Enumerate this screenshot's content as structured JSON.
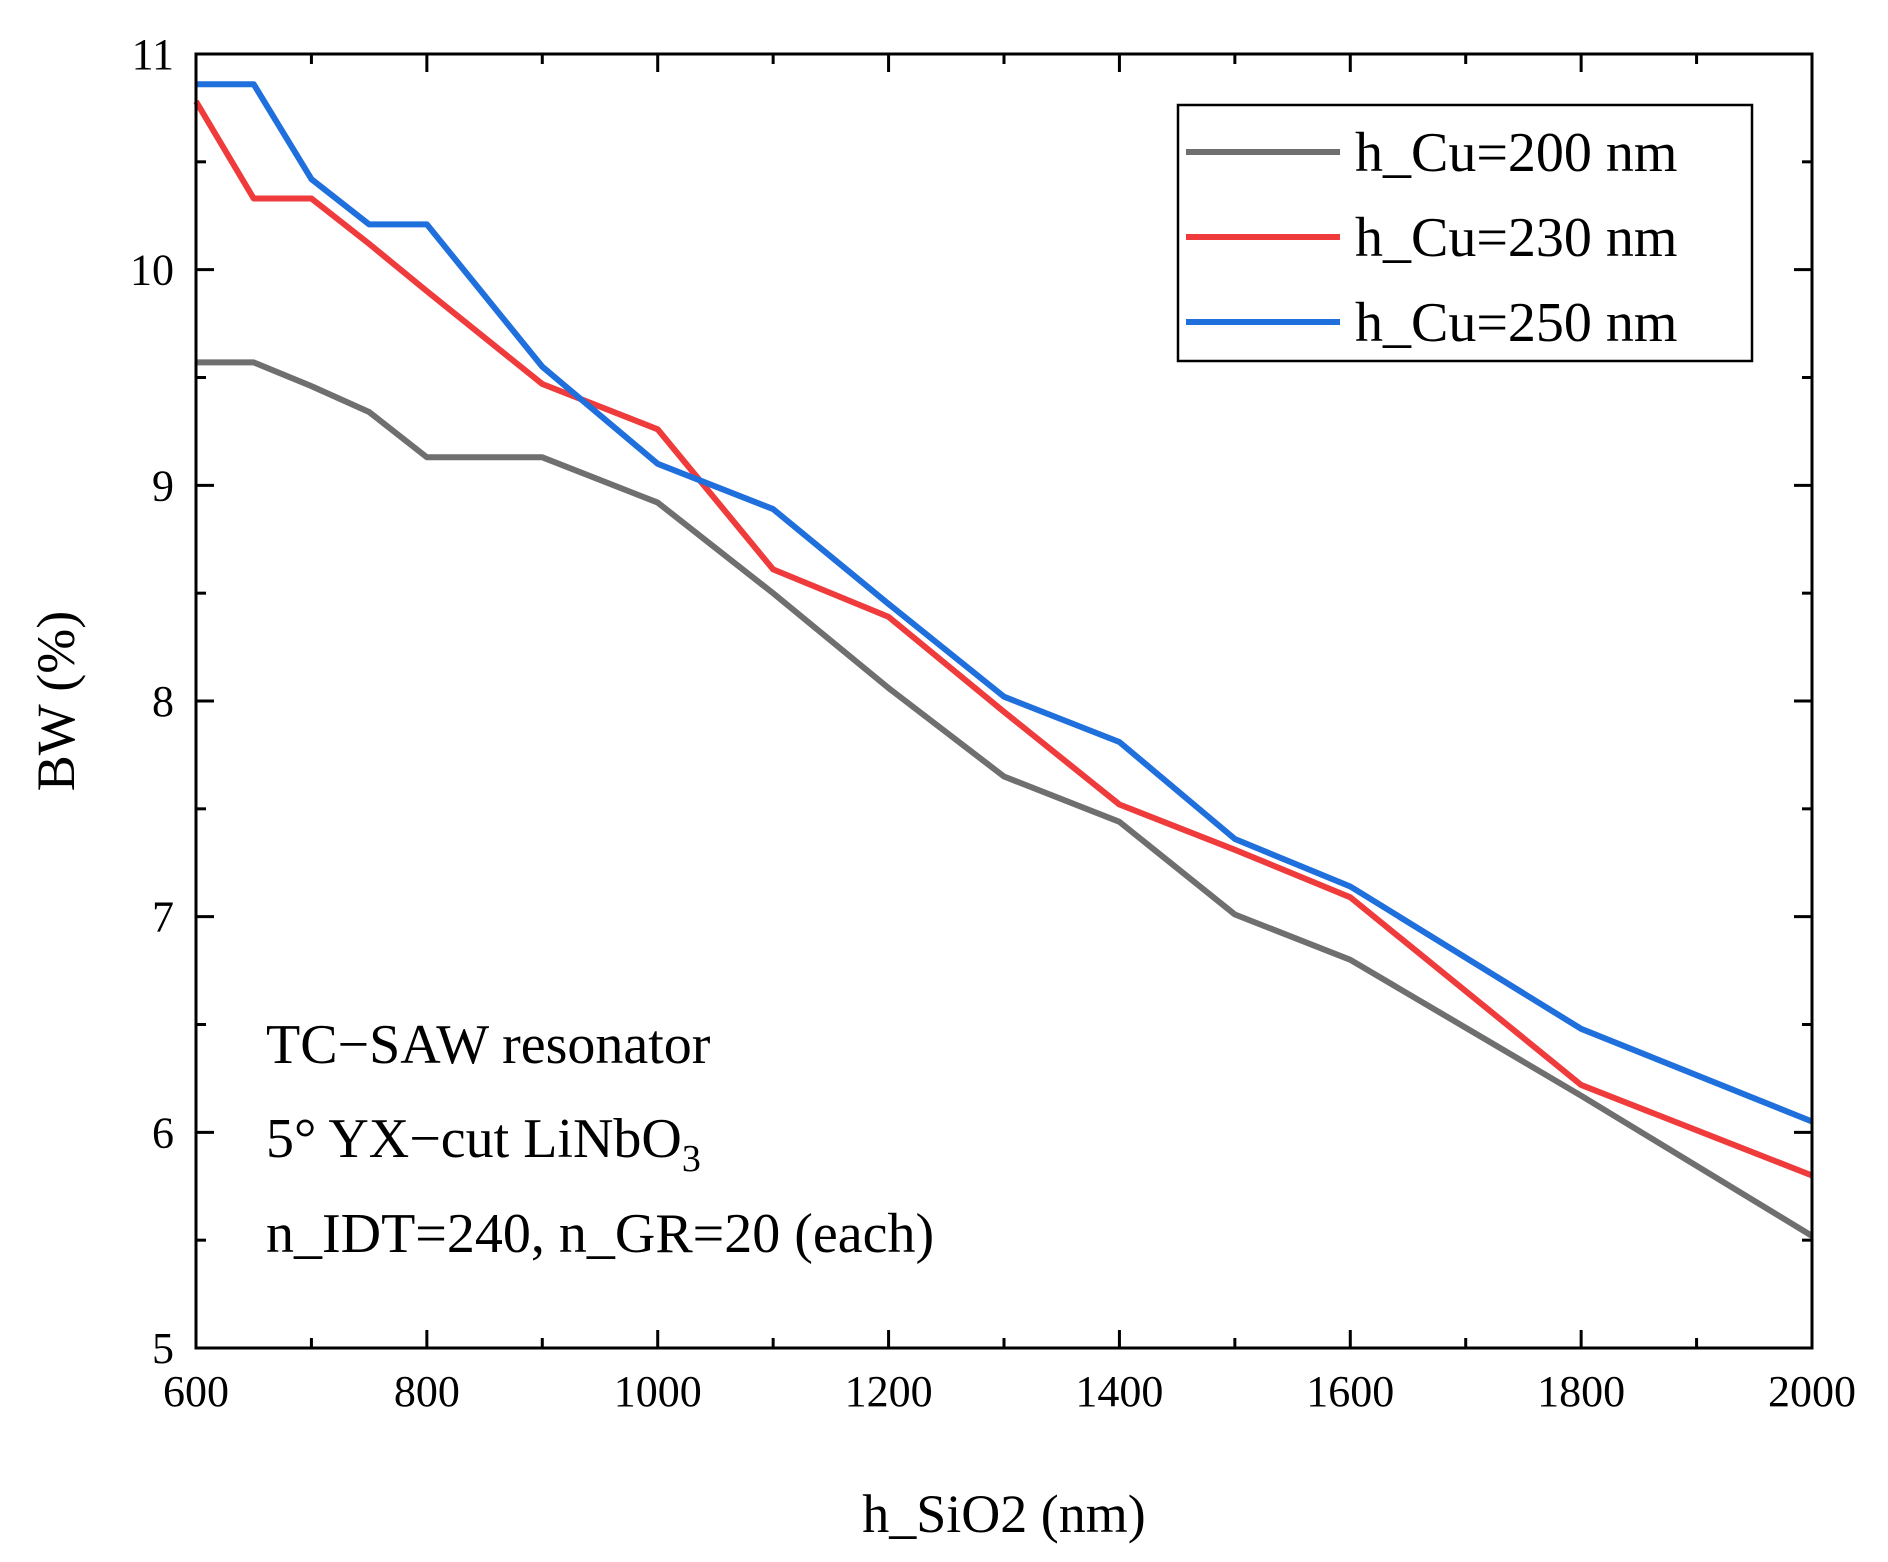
{
  "chart_data": {
    "type": "line",
    "title": "",
    "xlabel": "h_SiO2 (nm)",
    "ylabel": "BW (%)",
    "xlim": [
      600,
      2000
    ],
    "ylim": [
      5,
      11
    ],
    "x_ticks": [
      600,
      800,
      1000,
      1200,
      1400,
      1600,
      1800,
      2000
    ],
    "y_ticks": [
      5,
      6,
      7,
      8,
      9,
      10,
      11
    ],
    "legend_position": "top-right",
    "grid": false,
    "series": [
      {
        "name": "h_Cu=200 nm",
        "color": "#6f6f6f",
        "x": [
          600,
          650,
          700,
          750,
          800,
          900,
          1000,
          1100,
          1200,
          1300,
          1400,
          1500,
          1600,
          1800,
          2000
        ],
        "y": [
          9.57,
          9.57,
          9.46,
          9.34,
          9.13,
          9.13,
          8.92,
          8.5,
          8.06,
          7.65,
          7.44,
          7.01,
          6.8,
          6.17,
          5.52
        ]
      },
      {
        "name": "h_Cu=230 nm",
        "color": "#ef3b3b",
        "x": [
          600,
          650,
          700,
          750,
          800,
          900,
          1000,
          1100,
          1200,
          1300,
          1400,
          1500,
          1600,
          1800,
          2000
        ],
        "y": [
          10.78,
          10.33,
          10.33,
          10.12,
          9.9,
          9.47,
          9.26,
          8.61,
          8.39,
          7.95,
          7.52,
          7.31,
          7.09,
          6.22,
          5.8
        ]
      },
      {
        "name": "h_Cu=250 nm",
        "color": "#1f6fdc",
        "x": [
          600,
          650,
          700,
          750,
          800,
          900,
          1000,
          1100,
          1200,
          1300,
          1400,
          1500,
          1600,
          1800,
          2000
        ],
        "y": [
          10.86,
          10.86,
          10.42,
          10.21,
          10.21,
          9.55,
          9.1,
          8.89,
          8.45,
          8.02,
          7.81,
          7.36,
          7.14,
          6.48,
          6.05
        ]
      }
    ],
    "annotations": [
      {
        "text": "TC−SAW resonator"
      },
      {
        "text": "5° YX−cut LiNbO",
        "subscript": "3"
      },
      {
        "text": "n_IDT=240, n_GR=20 (each)"
      }
    ]
  }
}
